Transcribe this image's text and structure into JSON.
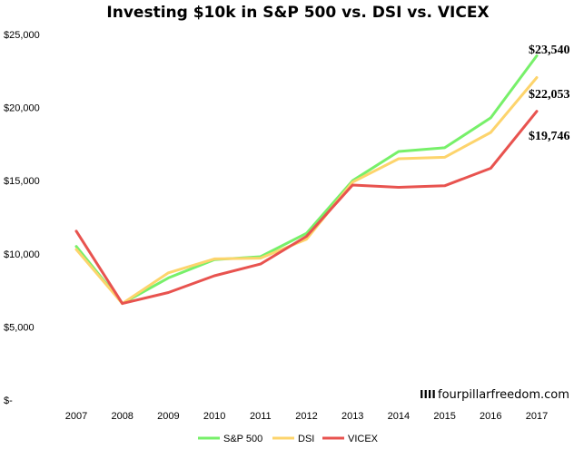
{
  "chart_data": {
    "type": "line",
    "title": "Investing $10k in S&P 500 vs. DSI vs. VICEX",
    "xlabel": "",
    "ylabel": "",
    "x": [
      "2007",
      "2008",
      "2009",
      "2010",
      "2011",
      "2012",
      "2013",
      "2014",
      "2015",
      "2016",
      "2017"
    ],
    "ylim": [
      0,
      25000
    ],
    "y_ticks": [
      {
        "value": 0,
        "label": "$-"
      },
      {
        "value": 5000,
        "label": "$5,000"
      },
      {
        "value": 10000,
        "label": "$10,000"
      },
      {
        "value": 15000,
        "label": "$15,000"
      },
      {
        "value": 20000,
        "label": "$20,000"
      },
      {
        "value": 25000,
        "label": "$25,000"
      }
    ],
    "grid": false,
    "legend_position": "bottom",
    "series": [
      {
        "name": "S&P 500",
        "color": "#77f06a",
        "values": [
          10500,
          6600,
          8350,
          9600,
          9800,
          11400,
          15000,
          17000,
          17250,
          19300,
          23540
        ]
      },
      {
        "name": "DSI",
        "color": "#fdd46c",
        "values": [
          10300,
          6600,
          8700,
          9650,
          9700,
          11000,
          14900,
          16500,
          16600,
          18300,
          22053
        ]
      },
      {
        "name": "VICEX",
        "color": "#e8534f",
        "values": [
          11550,
          6600,
          7350,
          8500,
          9300,
          11200,
          14700,
          14550,
          14650,
          15850,
          19746
        ]
      }
    ],
    "annotations": [
      {
        "series": "S&P 500",
        "text": "$23,540"
      },
      {
        "series": "DSI",
        "text": "$22,053"
      },
      {
        "series": "VICEX",
        "text": "$19,746"
      }
    ],
    "watermark": {
      "mark": "IIII",
      "text": "fourpillarfreedom.com"
    }
  }
}
